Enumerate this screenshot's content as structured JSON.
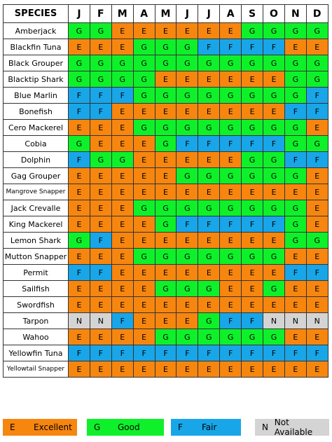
{
  "colors": {
    "E": "#F7860F",
    "G": "#0EF12A",
    "F": "#18A6E8",
    "N": "#D4D4D4"
  },
  "header": {
    "species": "SPECIES",
    "months": [
      "J",
      "F",
      "M",
      "A",
      "M",
      "J",
      "J",
      "A",
      "S",
      "O",
      "N",
      "D"
    ]
  },
  "rows": [
    {
      "species": "Amberjack",
      "values": [
        "G",
        "G",
        "E",
        "E",
        "E",
        "E",
        "E",
        "E",
        "G",
        "G",
        "G",
        "G"
      ]
    },
    {
      "species": "Blackfin Tuna",
      "values": [
        "E",
        "E",
        "E",
        "G",
        "G",
        "G",
        "F",
        "F",
        "F",
        "F",
        "E",
        "E"
      ]
    },
    {
      "species": "Black Grouper",
      "values": [
        "G",
        "G",
        "G",
        "G",
        "G",
        "G",
        "G",
        "G",
        "G",
        "G",
        "G",
        "G"
      ]
    },
    {
      "species": "Blacktip Shark",
      "values": [
        "G",
        "G",
        "G",
        "G",
        "E",
        "E",
        "E",
        "E",
        "E",
        "E",
        "G",
        "G"
      ]
    },
    {
      "species": "Blue Marlin",
      "values": [
        "F",
        "F",
        "F",
        "G",
        "G",
        "G",
        "G",
        "G",
        "G",
        "G",
        "G",
        "F"
      ]
    },
    {
      "species": "Bonefish",
      "values": [
        "F",
        "F",
        "E",
        "E",
        "E",
        "E",
        "E",
        "E",
        "E",
        "E",
        "F",
        "F"
      ]
    },
    {
      "species": "Cero Mackerel",
      "values": [
        "E",
        "E",
        "E",
        "G",
        "G",
        "G",
        "G",
        "G",
        "G",
        "G",
        "G",
        "E"
      ]
    },
    {
      "species": "Cobia",
      "values": [
        "G",
        "E",
        "E",
        "E",
        "G",
        "F",
        "F",
        "F",
        "F",
        "F",
        "G",
        "G"
      ]
    },
    {
      "species": "Dolphin",
      "values": [
        "F",
        "G",
        "G",
        "E",
        "E",
        "E",
        "E",
        "E",
        "G",
        "G",
        "F",
        "F"
      ]
    },
    {
      "species": "Gag Grouper",
      "values": [
        "E",
        "E",
        "E",
        "E",
        "E",
        "G",
        "G",
        "G",
        "G",
        "G",
        "G",
        "E"
      ]
    },
    {
      "species": "Mangrove Snapper",
      "values": [
        "E",
        "E",
        "E",
        "E",
        "E",
        "E",
        "E",
        "E",
        "E",
        "E",
        "E",
        "E"
      ]
    },
    {
      "species": "Jack Crevalle",
      "values": [
        "E",
        "E",
        "E",
        "G",
        "G",
        "G",
        "G",
        "G",
        "G",
        "G",
        "G",
        "E"
      ]
    },
    {
      "species": "King Mackerel",
      "values": [
        "E",
        "E",
        "E",
        "E",
        "G",
        "F",
        "F",
        "F",
        "F",
        "F",
        "G",
        "E"
      ]
    },
    {
      "species": "Lemon Shark",
      "values": [
        "G",
        "F",
        "E",
        "E",
        "E",
        "E",
        "E",
        "E",
        "E",
        "E",
        "G",
        "G"
      ]
    },
    {
      "species": "Mutton Snapper",
      "values": [
        "E",
        "E",
        "E",
        "G",
        "G",
        "G",
        "G",
        "G",
        "G",
        "G",
        "E",
        "E"
      ]
    },
    {
      "species": "Permit",
      "values": [
        "F",
        "F",
        "E",
        "E",
        "E",
        "E",
        "E",
        "E",
        "E",
        "E",
        "F",
        "F"
      ]
    },
    {
      "species": "Sailfish",
      "values": [
        "E",
        "E",
        "E",
        "E",
        "G",
        "G",
        "G",
        "E",
        "E",
        "G",
        "E",
        "E"
      ]
    },
    {
      "species": "Swordfish",
      "values": [
        "E",
        "E",
        "E",
        "E",
        "E",
        "E",
        "E",
        "E",
        "E",
        "E",
        "E",
        "E"
      ]
    },
    {
      "species": "Tarpon",
      "values": [
        "N",
        "N",
        "F",
        "E",
        "E",
        "E",
        "G",
        "F",
        "F",
        "N",
        "N",
        "N"
      ]
    },
    {
      "species": "Wahoo",
      "values": [
        "E",
        "E",
        "E",
        "E",
        "G",
        "G",
        "G",
        "G",
        "G",
        "G",
        "E",
        "E"
      ]
    },
    {
      "species": "Yellowfin Tuna",
      "values": [
        "F",
        "F",
        "F",
        "F",
        "F",
        "F",
        "F",
        "F",
        "F",
        "F",
        "F",
        "F"
      ]
    },
    {
      "species": "Yellowtail Snapper",
      "values": [
        "E",
        "E",
        "E",
        "E",
        "E",
        "E",
        "E",
        "E",
        "E",
        "E",
        "E",
        "E"
      ]
    }
  ],
  "legend": [
    {
      "key": "E",
      "label": "Excellent"
    },
    {
      "key": "G",
      "label": "Good"
    },
    {
      "key": "F",
      "label": "Fair"
    },
    {
      "key": "N",
      "label": "Not Available"
    }
  ]
}
